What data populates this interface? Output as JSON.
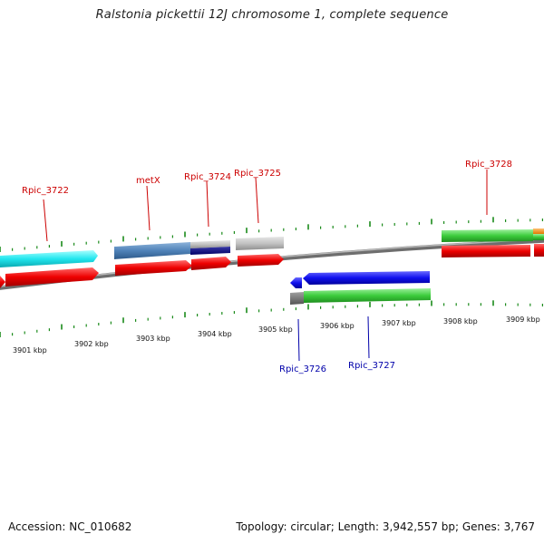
{
  "title": "Ralstonia pickettii 12J chromosome 1, complete sequence",
  "footer": {
    "accession": "Accession: NC_010682",
    "summary": "Topology: circular; Length: 3,942,557 bp; Genes: 3,767"
  },
  "colors": {
    "forward_label": "#cc0000",
    "reverse_label": "#0000aa",
    "tick": "#1a8a1a",
    "backbone": "#888888"
  },
  "scale_labels": [
    "3901 kbp",
    "3902 kbp",
    "3903 kbp",
    "3904 kbp",
    "3905 kbp",
    "3906 kbp",
    "3907 kbp",
    "3908 kbp",
    "3909 kbp"
  ],
  "gene_labels": {
    "rpic_3722": "Rpic_3722",
    "metx": "metX",
    "rpic_3724": "Rpic_3724",
    "rpic_3725": "Rpic_3725",
    "rpic_3728": "Rpic_3728",
    "rpic_3726": "Rpic_3726",
    "rpic_3727": "Rpic_3727"
  }
}
